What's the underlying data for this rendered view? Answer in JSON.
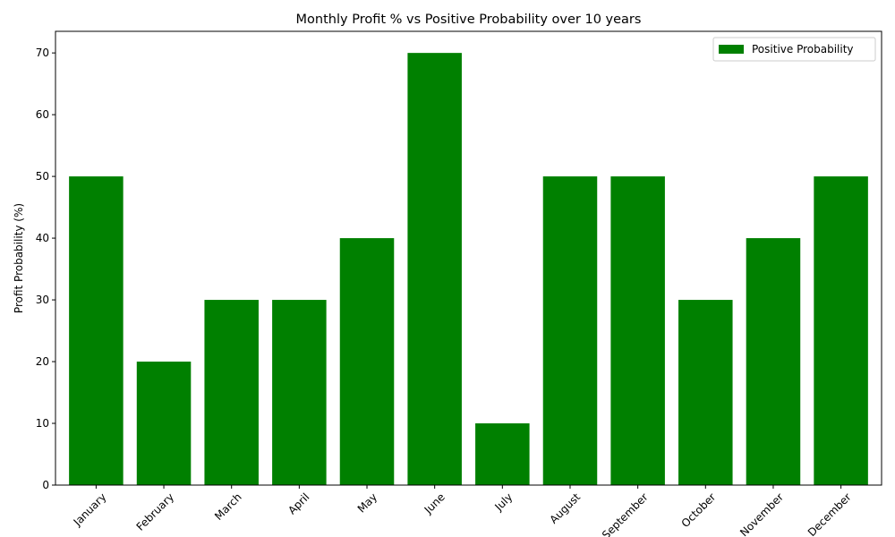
{
  "chart_data": {
    "type": "bar",
    "title": "Monthly Profit % vs Positive Probability over 10 years",
    "xlabel": "",
    "ylabel": "Profit Probability (%)",
    "categories": [
      "January",
      "February",
      "March",
      "April",
      "May",
      "June",
      "July",
      "August",
      "September",
      "October",
      "November",
      "December"
    ],
    "series": [
      {
        "name": "Positive Probability",
        "color": "#008000",
        "values": [
          50,
          20,
          30,
          30,
          40,
          70,
          10,
          50,
          50,
          30,
          40,
          50
        ]
      }
    ],
    "ylim": [
      0,
      73.5
    ],
    "yticks": [
      0,
      10,
      20,
      30,
      40,
      50,
      60,
      70
    ],
    "grid": false,
    "legend_position": "top-right"
  }
}
